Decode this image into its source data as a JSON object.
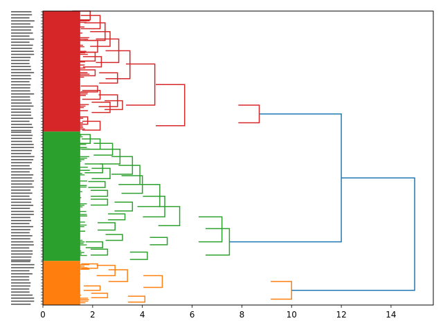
{
  "chart_data": {
    "type": "dendrogram",
    "orientation": "right",
    "title": "",
    "xlabel": "",
    "ylabel": "",
    "xlim": [
      0,
      15.7
    ],
    "xticks": [
      0,
      2,
      4,
      6,
      8,
      10,
      12,
      14
    ],
    "xtick_labels": [
      "0",
      "2",
      "4",
      "6",
      "8",
      "10",
      "12",
      "14"
    ],
    "link_color": "#1f77b4",
    "clusters": [
      {
        "name": "red",
        "color": "#d62728",
        "span": [
          0.0,
          0.41
        ],
        "merges": [
          {
            "d": 1.9,
            "a": 0.0,
            "b": 0.03
          },
          {
            "d": 2.3,
            "a": 0.015,
            "b": 0.06
          },
          {
            "d": 2.5,
            "a": 0.04,
            "b": 0.1
          },
          {
            "d": 2.2,
            "a": 0.1,
            "b": 0.14
          },
          {
            "d": 2.7,
            "a": 0.07,
            "b": 0.12
          },
          {
            "d": 2.1,
            "a": 0.14,
            "b": 0.17
          },
          {
            "d": 2.35,
            "a": 0.155,
            "b": 0.19
          },
          {
            "d": 3.05,
            "a": 0.095,
            "b": 0.175
          },
          {
            "d": 2.1,
            "a": 0.2,
            "b": 0.22
          },
          {
            "d": 3.0,
            "a": 0.21,
            "b": 0.245
          },
          {
            "d": 3.5,
            "a": 0.135,
            "b": 0.23
          },
          {
            "d": 2.2,
            "a": 0.255,
            "b": 0.275
          },
          {
            "d": 2.3,
            "a": 0.27,
            "b": 0.3
          },
          {
            "d": 3.0,
            "a": 0.285,
            "b": 0.325
          },
          {
            "d": 2.7,
            "a": 0.31,
            "b": 0.345
          },
          {
            "d": 3.2,
            "a": 0.305,
            "b": 0.335
          },
          {
            "d": 4.5,
            "a": 0.18,
            "b": 0.32
          },
          {
            "d": 1.8,
            "a": 0.36,
            "b": 0.385
          },
          {
            "d": 2.3,
            "a": 0.375,
            "b": 0.405
          },
          {
            "d": 5.7,
            "a": 0.25,
            "b": 0.39
          },
          {
            "d": 8.7,
            "a": 0.32,
            "b": 0.38
          }
        ]
      },
      {
        "name": "green",
        "color": "#2ca02c",
        "span": [
          0.41,
          0.85
        ],
        "merges": [
          {
            "d": 1.9,
            "a": 0.42,
            "b": 0.45
          },
          {
            "d": 2.3,
            "a": 0.435,
            "b": 0.47
          },
          {
            "d": 2.8,
            "a": 0.45,
            "b": 0.49
          },
          {
            "d": 3.1,
            "a": 0.47,
            "b": 0.52
          },
          {
            "d": 2.4,
            "a": 0.52,
            "b": 0.55
          },
          {
            "d": 2.7,
            "a": 0.535,
            "b": 0.57
          },
          {
            "d": 3.6,
            "a": 0.495,
            "b": 0.555
          },
          {
            "d": 2.5,
            "a": 0.58,
            "b": 0.6
          },
          {
            "d": 3.9,
            "a": 0.525,
            "b": 0.59
          },
          {
            "d": 2.6,
            "a": 0.61,
            "b": 0.63
          },
          {
            "d": 4.0,
            "a": 0.56,
            "b": 0.62
          },
          {
            "d": 2.6,
            "a": 0.64,
            "b": 0.66
          },
          {
            "d": 3.6,
            "a": 0.65,
            "b": 0.68
          },
          {
            "d": 4.7,
            "a": 0.59,
            "b": 0.665
          },
          {
            "d": 3.3,
            "a": 0.69,
            "b": 0.71
          },
          {
            "d": 4.9,
            "a": 0.63,
            "b": 0.7
          },
          {
            "d": 2.9,
            "a": 0.72,
            "b": 0.745
          },
          {
            "d": 5.5,
            "a": 0.665,
            "b": 0.73
          },
          {
            "d": 3.2,
            "a": 0.76,
            "b": 0.78
          },
          {
            "d": 2.4,
            "a": 0.785,
            "b": 0.805
          },
          {
            "d": 5.0,
            "a": 0.77,
            "b": 0.795
          },
          {
            "d": 7.2,
            "a": 0.7,
            "b": 0.785
          },
          {
            "d": 2.6,
            "a": 0.81,
            "b": 0.83
          },
          {
            "d": 4.2,
            "a": 0.82,
            "b": 0.845
          },
          {
            "d": 7.5,
            "a": 0.74,
            "b": 0.83
          }
        ]
      },
      {
        "name": "orange",
        "color": "#ff7f0e",
        "span": [
          0.85,
          1.0
        ],
        "merges": [
          {
            "d": 2.2,
            "a": 0.86,
            "b": 0.875
          },
          {
            "d": 2.9,
            "a": 0.865,
            "b": 0.9
          },
          {
            "d": 3.4,
            "a": 0.88,
            "b": 0.92
          },
          {
            "d": 2.3,
            "a": 0.935,
            "b": 0.95
          },
          {
            "d": 4.8,
            "a": 0.9,
            "b": 0.94
          },
          {
            "d": 2.6,
            "a": 0.96,
            "b": 0.975
          },
          {
            "d": 4.1,
            "a": 0.97,
            "b": 0.99
          },
          {
            "d": 10.0,
            "a": 0.92,
            "b": 0.98
          }
        ]
      }
    ],
    "top_links": [
      {
        "d": 12.0,
        "a": 0.35,
        "b": 0.78
      },
      {
        "d": 14.95,
        "a": 0.57,
        "b": 0.95
      }
    ]
  }
}
